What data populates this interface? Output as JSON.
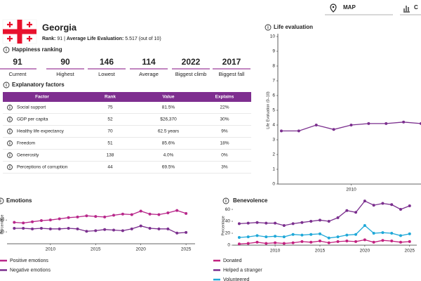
{
  "nav": {
    "map": "MAP",
    "chart": "C"
  },
  "header": {
    "country": "Georgia",
    "subtitle_parts": [
      "Rank:",
      " 91 | ",
      "Average Life Evaluation:",
      " 5.517 (out of 10)"
    ]
  },
  "sections": {
    "ranking": "Happiness ranking",
    "factors": "Explanatory factors"
  },
  "ranking": [
    {
      "value": 91,
      "label": "Current"
    },
    {
      "value": 90,
      "label": "Highest"
    },
    {
      "value": 146,
      "label": "Lowest"
    },
    {
      "value": 114,
      "label": "Average"
    },
    {
      "value": 2022,
      "label": "Biggest climb"
    },
    {
      "value": 2017,
      "label": "Biggest fall"
    }
  ],
  "table": {
    "columns": [
      "Factor",
      "Rank",
      "Value",
      "Explains"
    ],
    "rows": [
      [
        "Social support",
        75,
        "81.5%",
        "22%"
      ],
      [
        "GDP per capita",
        52,
        "$26,370",
        "30%"
      ],
      [
        "Healthy life expectancy",
        70,
        "62.5 years",
        "9%"
      ],
      [
        "Freedom",
        51,
        "85.6%",
        "18%"
      ],
      [
        "Generosity",
        138,
        "4.0%",
        "0%"
      ],
      [
        "Perceptions of corruption",
        44,
        "69.5%",
        "3%"
      ]
    ]
  },
  "chart_data": [
    {
      "type": "line",
      "title": "Life evaluation",
      "y_label": "Life Evaluation (0–10)",
      "x": [
        2006,
        2007,
        2008,
        2009,
        2010,
        2011,
        2012,
        2013,
        2014
      ],
      "values": [
        3.6,
        3.6,
        4.0,
        3.7,
        4.0,
        4.1,
        4.1,
        4.2,
        4.1
      ],
      "color": "#7b2f8e",
      "xlim": [
        2005.8,
        2014
      ],
      "xticks": [
        2010
      ],
      "ylim": [
        0,
        10
      ],
      "yticks": [
        0,
        1,
        2,
        3,
        4,
        5,
        6,
        7,
        8,
        9,
        10
      ]
    },
    {
      "type": "line",
      "title": "Emotions",
      "y_label": "Percentage",
      "x": [
        2006,
        2007,
        2008,
        2009,
        2010,
        2011,
        2012,
        2013,
        2014,
        2015,
        2016,
        2017,
        2018,
        2019,
        2020,
        2021,
        2022,
        2023,
        2024,
        2025
      ],
      "series": [
        {
          "name": "Positive emotions",
          "color": "#b8278a",
          "values": [
            36,
            35,
            37,
            39,
            40,
            42,
            44,
            45,
            47,
            46,
            45,
            48,
            50,
            49,
            55,
            50,
            49,
            52,
            56,
            51
          ]
        },
        {
          "name": "Negative emotions",
          "color": "#7b2f8e",
          "values": [
            26,
            26,
            25,
            26,
            25,
            25,
            26,
            25,
            21,
            22,
            24,
            23,
            22,
            25,
            30,
            26,
            25,
            25,
            18,
            19
          ]
        }
      ],
      "xlim": [
        2005.2,
        2026
      ],
      "xticks": [
        2010,
        2015,
        2020,
        2025
      ],
      "ylim": [
        0,
        65
      ],
      "yticks": [
        20,
        40
      ]
    },
    {
      "type": "line",
      "title": "Benevolence",
      "y_label": "Percentage",
      "x": [
        2006,
        2007,
        2008,
        2009,
        2010,
        2011,
        2012,
        2013,
        2014,
        2015,
        2016,
        2017,
        2018,
        2019,
        2020,
        2021,
        2022,
        2023,
        2024,
        2025
      ],
      "series": [
        {
          "name": "Donated",
          "color": "#c2207f",
          "values": [
            2,
            3,
            5,
            3,
            4,
            3,
            4,
            6,
            5,
            7,
            4,
            6,
            7,
            6,
            9,
            5,
            8,
            7,
            5,
            6
          ]
        },
        {
          "name": "Helped a stranger",
          "color": "#7b2f8e",
          "values": [
            36,
            37,
            38,
            37,
            37,
            33,
            36,
            38,
            40,
            42,
            40,
            46,
            58,
            55,
            74,
            67,
            70,
            68,
            60,
            66
          ]
        },
        {
          "name": "Volunteered",
          "color": "#1fa8d8",
          "values": [
            13,
            14,
            16,
            14,
            15,
            14,
            18,
            17,
            18,
            19,
            12,
            14,
            17,
            18,
            33,
            20,
            21,
            20,
            16,
            19
          ]
        }
      ],
      "xlim": [
        2005.3,
        2025.8
      ],
      "xticks": [
        2010,
        2015,
        2020,
        2025
      ],
      "ylim": [
        0,
        65
      ],
      "yticks": [
        0,
        20,
        40,
        60
      ]
    }
  ]
}
